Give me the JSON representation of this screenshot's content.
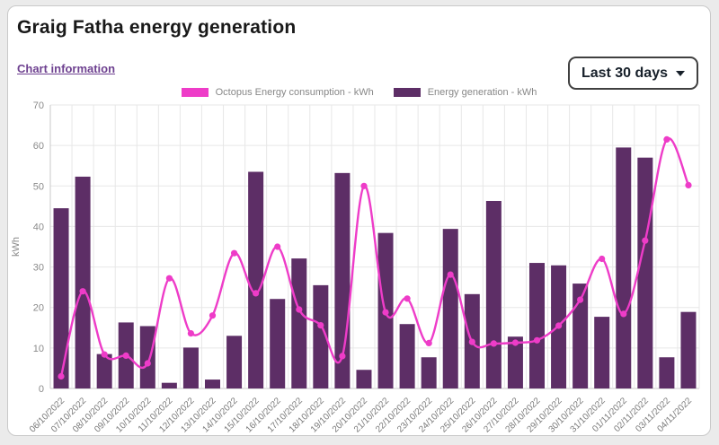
{
  "header": {
    "title": "Graig Fatha energy generation",
    "chart_info_link": "Chart information"
  },
  "controls": {
    "range_label": "Last 30 days"
  },
  "legend": [
    {
      "label": "Octopus Energy consumption - kWh",
      "color": "#ee3cc8"
    },
    {
      "label": "Energy generation - kWh",
      "color": "#5d2e66"
    }
  ],
  "colors": {
    "consumption": "#ee3cc8",
    "generation": "#5d2e66",
    "link_purple": "#6e4190",
    "grid": "#e7e7e7",
    "axis": "#c9c9c9",
    "tick_text": "#8a8a8a"
  },
  "chart_data": {
    "type": "bar",
    "title": "Graig Fatha energy generation",
    "xlabel": "",
    "ylabel": "kWh",
    "ylim": [
      0,
      70
    ],
    "yticks": [
      0,
      10,
      20,
      30,
      40,
      50,
      60,
      70
    ],
    "grid": true,
    "legend_position": "top-center",
    "categories": [
      "06/10/2022",
      "07/10/2022",
      "08/10/2022",
      "09/10/2022",
      "10/10/2022",
      "11/10/2022",
      "12/10/2022",
      "13/10/2022",
      "14/10/2022",
      "15/10/2022",
      "16/10/2022",
      "17/10/2022",
      "18/10/2022",
      "19/10/2022",
      "20/10/2022",
      "21/10/2022",
      "22/10/2022",
      "23/10/2022",
      "24/10/2022",
      "25/10/2022",
      "26/10/2022",
      "27/10/2022",
      "28/10/2022",
      "29/10/2022",
      "30/10/2022",
      "31/10/2022",
      "01/11/2022",
      "02/11/2022",
      "03/11/2022",
      "04/11/2022"
    ],
    "series": [
      {
        "name": "Octopus Energy consumption - kWh",
        "type": "line",
        "color": "#ee3cc8",
        "values": [
          3.0,
          24.0,
          8.4,
          8.1,
          6.2,
          27.2,
          13.6,
          18.0,
          33.4,
          23.5,
          35.0,
          19.5,
          15.6,
          8.0,
          50.0,
          18.8,
          22.2,
          11.2,
          28.1,
          11.5,
          11.1,
          11.3,
          11.9,
          15.5,
          21.9,
          32.0,
          18.4,
          36.5,
          61.5,
          50.2
        ]
      },
      {
        "name": "Energy generation - kWh",
        "type": "bar",
        "color": "#5d2e66",
        "values": [
          44.5,
          52.3,
          8.5,
          16.3,
          15.4,
          1.4,
          10.1,
          2.2,
          13.0,
          53.5,
          22.1,
          32.1,
          25.5,
          53.2,
          4.6,
          38.4,
          15.9,
          7.7,
          39.4,
          23.3,
          46.3,
          12.8,
          31.0,
          30.4,
          25.9,
          17.7,
          59.5,
          57.0,
          7.7,
          18.9
        ]
      }
    ]
  }
}
